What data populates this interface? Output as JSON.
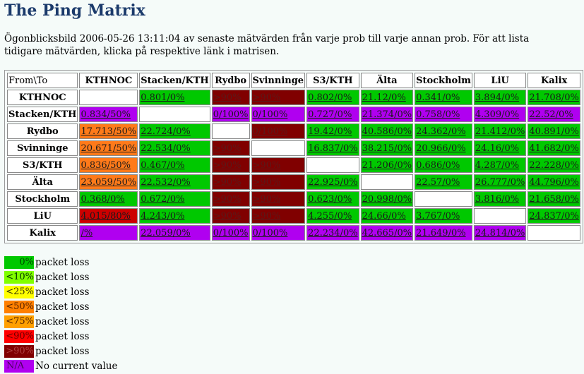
{
  "title": "The Ping Matrix",
  "intro": "Ögonblicksbild 2006-05-26 13:11:04 av senaste mätvärden från varje prob till varje annan prob. För att lista tidigare mätvärden, klicka på respektive länk i matrisen.",
  "matrix": {
    "corner": "From\\To",
    "columns": [
      "KTHNOC",
      "Stacken/KTH",
      "Rydbo",
      "Svinninge",
      "S3/KTH",
      "Älta",
      "Stockholm",
      "LiU",
      "Kalix"
    ],
    "rows": [
      {
        "name": "KTHNOC",
        "cells": [
          {
            "t": "",
            "c": "empty"
          },
          {
            "t": "0.801/0%",
            "c": "c0"
          },
          {
            "t": "&gt;90%",
            "c": "c90p"
          },
          {
            "t": "&gt;90%",
            "c": "c90p"
          },
          {
            "t": "0.802/0%",
            "c": "c0"
          },
          {
            "t": "21.12/0%",
            "c": "c0"
          },
          {
            "t": "0.341/0%",
            "c": "c0"
          },
          {
            "t": "3.894/0%",
            "c": "c0"
          },
          {
            "t": "21.708/0%",
            "c": "c0"
          }
        ]
      },
      {
        "name": "Stacken/KTH",
        "cells": [
          {
            "t": "0.834/50%",
            "c": "cna"
          },
          {
            "t": "",
            "c": "empty"
          },
          {
            "t": "0/100%",
            "c": "cna"
          },
          {
            "t": "0/100%",
            "c": "cna"
          },
          {
            "t": "0.727/0%",
            "c": "cna"
          },
          {
            "t": "21.374/0%",
            "c": "cna"
          },
          {
            "t": "0.758/0%",
            "c": "cna"
          },
          {
            "t": "4.309/0%",
            "c": "cna"
          },
          {
            "t": "22.52/0%",
            "c": "cna"
          }
        ]
      },
      {
        "name": "Rydbo",
        "cells": [
          {
            "t": "17.713/50%",
            "c": "c50"
          },
          {
            "t": "22.724/0%",
            "c": "c0"
          },
          {
            "t": "",
            "c": "empty"
          },
          {
            "t": "0/100%",
            "c": "c90p"
          },
          {
            "t": "19.42/0%",
            "c": "c0"
          },
          {
            "t": "40.586/0%",
            "c": "c0"
          },
          {
            "t": "24.362/0%",
            "c": "c0"
          },
          {
            "t": "21.412/0%",
            "c": "c0"
          },
          {
            "t": "40.891/0%",
            "c": "c0"
          }
        ]
      },
      {
        "name": "Svinninge",
        "cells": [
          {
            "t": "20.671/50%",
            "c": "c50"
          },
          {
            "t": "22.534/0%",
            "c": "c0"
          },
          {
            "t": "&gt;90%",
            "c": "c90p"
          },
          {
            "t": "",
            "c": "empty"
          },
          {
            "t": "16.837/0%",
            "c": "c0"
          },
          {
            "t": "38.215/0%",
            "c": "c0"
          },
          {
            "t": "20.966/0%",
            "c": "c0"
          },
          {
            "t": "24.16/0%",
            "c": "c0"
          },
          {
            "t": "41.682/0%",
            "c": "c0"
          }
        ]
      },
      {
        "name": "S3/KTH",
        "cells": [
          {
            "t": "0.836/50%",
            "c": "c50"
          },
          {
            "t": "0.467/0%",
            "c": "c0"
          },
          {
            "t": "&gt;90%",
            "c": "c90p"
          },
          {
            "t": "&gt;90%",
            "c": "c90p"
          },
          {
            "t": "",
            "c": "empty"
          },
          {
            "t": "21.206/0%",
            "c": "c0"
          },
          {
            "t": "0.686/0%",
            "c": "c0"
          },
          {
            "t": "4.287/0%",
            "c": "c0"
          },
          {
            "t": "22.228/0%",
            "c": "c0"
          }
        ]
      },
      {
        "name": "Älta",
        "cells": [
          {
            "t": "23.059/50%",
            "c": "c50"
          },
          {
            "t": "22.532/0%",
            "c": "c0"
          },
          {
            "t": "&gt;90%",
            "c": "c90p"
          },
          {
            "t": "&gt;90%",
            "c": "c90p"
          },
          {
            "t": "22.925/0%",
            "c": "c0"
          },
          {
            "t": "",
            "c": "empty"
          },
          {
            "t": "22.57/0%",
            "c": "c0"
          },
          {
            "t": "26.777/0%",
            "c": "c0"
          },
          {
            "t": "44.796/0%",
            "c": "c0"
          }
        ]
      },
      {
        "name": "Stockholm",
        "cells": [
          {
            "t": "0.368/0%",
            "c": "c0"
          },
          {
            "t": "0.672/0%",
            "c": "c0"
          },
          {
            "t": "&gt;90%",
            "c": "c90p"
          },
          {
            "t": "&gt;90%",
            "c": "c90p"
          },
          {
            "t": "0.623/0%",
            "c": "c0"
          },
          {
            "t": "20.998/0%",
            "c": "c0"
          },
          {
            "t": "",
            "c": "empty"
          },
          {
            "t": "3.816/0%",
            "c": "c0"
          },
          {
            "t": "21.658/0%",
            "c": "c0"
          }
        ]
      },
      {
        "name": "LiU",
        "cells": [
          {
            "t": "4.015/80%",
            "c": "c80"
          },
          {
            "t": "4.243/0%",
            "c": "c0"
          },
          {
            "t": "&gt;90%",
            "c": "c90p"
          },
          {
            "t": "&gt;90%",
            "c": "c90p"
          },
          {
            "t": "4.255/0%",
            "c": "c0"
          },
          {
            "t": "24.66/0%",
            "c": "c0"
          },
          {
            "t": "3.767/0%",
            "c": "c0"
          },
          {
            "t": "",
            "c": "empty"
          },
          {
            "t": "24.837/0%",
            "c": "c0"
          }
        ]
      },
      {
        "name": "Kalix",
        "cells": [
          {
            "t": "/%",
            "c": "cna"
          },
          {
            "t": "22.059/0%",
            "c": "cna"
          },
          {
            "t": "0/100%",
            "c": "cna"
          },
          {
            "t": "0/100%",
            "c": "cna"
          },
          {
            "t": "22.234/0%",
            "c": "cna"
          },
          {
            "t": "42.665/0%",
            "c": "cna"
          },
          {
            "t": "21.649/0%",
            "c": "cna"
          },
          {
            "t": "24.814/0%",
            "c": "cna"
          },
          {
            "t": "",
            "c": "empty"
          }
        ]
      }
    ]
  },
  "legend": [
    {
      "swatch": "0%",
      "label": "packet loss",
      "cls": "s0"
    },
    {
      "swatch": "<10%",
      "label": "packet loss",
      "cls": "s10"
    },
    {
      "swatch": "<25%",
      "label": "packet loss",
      "cls": "s25"
    },
    {
      "swatch": "<50%",
      "label": "packet loss",
      "cls": "s50"
    },
    {
      "swatch": "<75%",
      "label": "packet loss",
      "cls": "s75"
    },
    {
      "swatch": "<90%",
      "label": "packet loss",
      "cls": "s90"
    },
    {
      "swatch": ">90%",
      "label": "packet loss",
      "cls": "s90p"
    },
    {
      "swatch": "N/A",
      "label": "No current value",
      "cls": "sna"
    }
  ],
  "colors": {
    "ok_green": "#00c800",
    "over90_maroon": "#800000",
    "loss80_red": "#cc0000",
    "loss50_orange": "#ff7a1a",
    "na_purple": "#b000f0",
    "title_blue": "#1b3a6b"
  }
}
